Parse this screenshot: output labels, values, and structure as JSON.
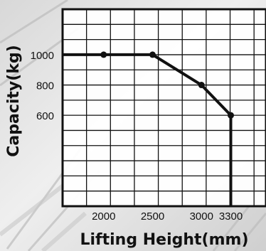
{
  "chart_data": {
    "type": "line",
    "title": "",
    "xlabel": "Lifting Height(mm)",
    "ylabel": "Capacity(kg)",
    "x": [
      2000,
      2500,
      3000,
      3300
    ],
    "series": [
      {
        "values": [
          1000,
          1000,
          800,
          600
        ]
      }
    ],
    "x_ticks": [
      {
        "value": 2000,
        "label": "2000"
      },
      {
        "value": 2500,
        "label": "2500"
      },
      {
        "value": 3000,
        "label": "3000"
      },
      {
        "value": 3300,
        "label": "3300"
      }
    ],
    "y_ticks": [
      {
        "value": 1000,
        "label": "1000"
      },
      {
        "value": 800,
        "label": "800"
      },
      {
        "value": 600,
        "label": "600"
      }
    ],
    "xlim": [
      1580,
      3660
    ],
    "ylim": [
      0,
      1300
    ],
    "grid": true,
    "legend": "none",
    "colors": {
      "line": "#111111",
      "grid": "#111111",
      "background": "#ffffff"
    }
  }
}
